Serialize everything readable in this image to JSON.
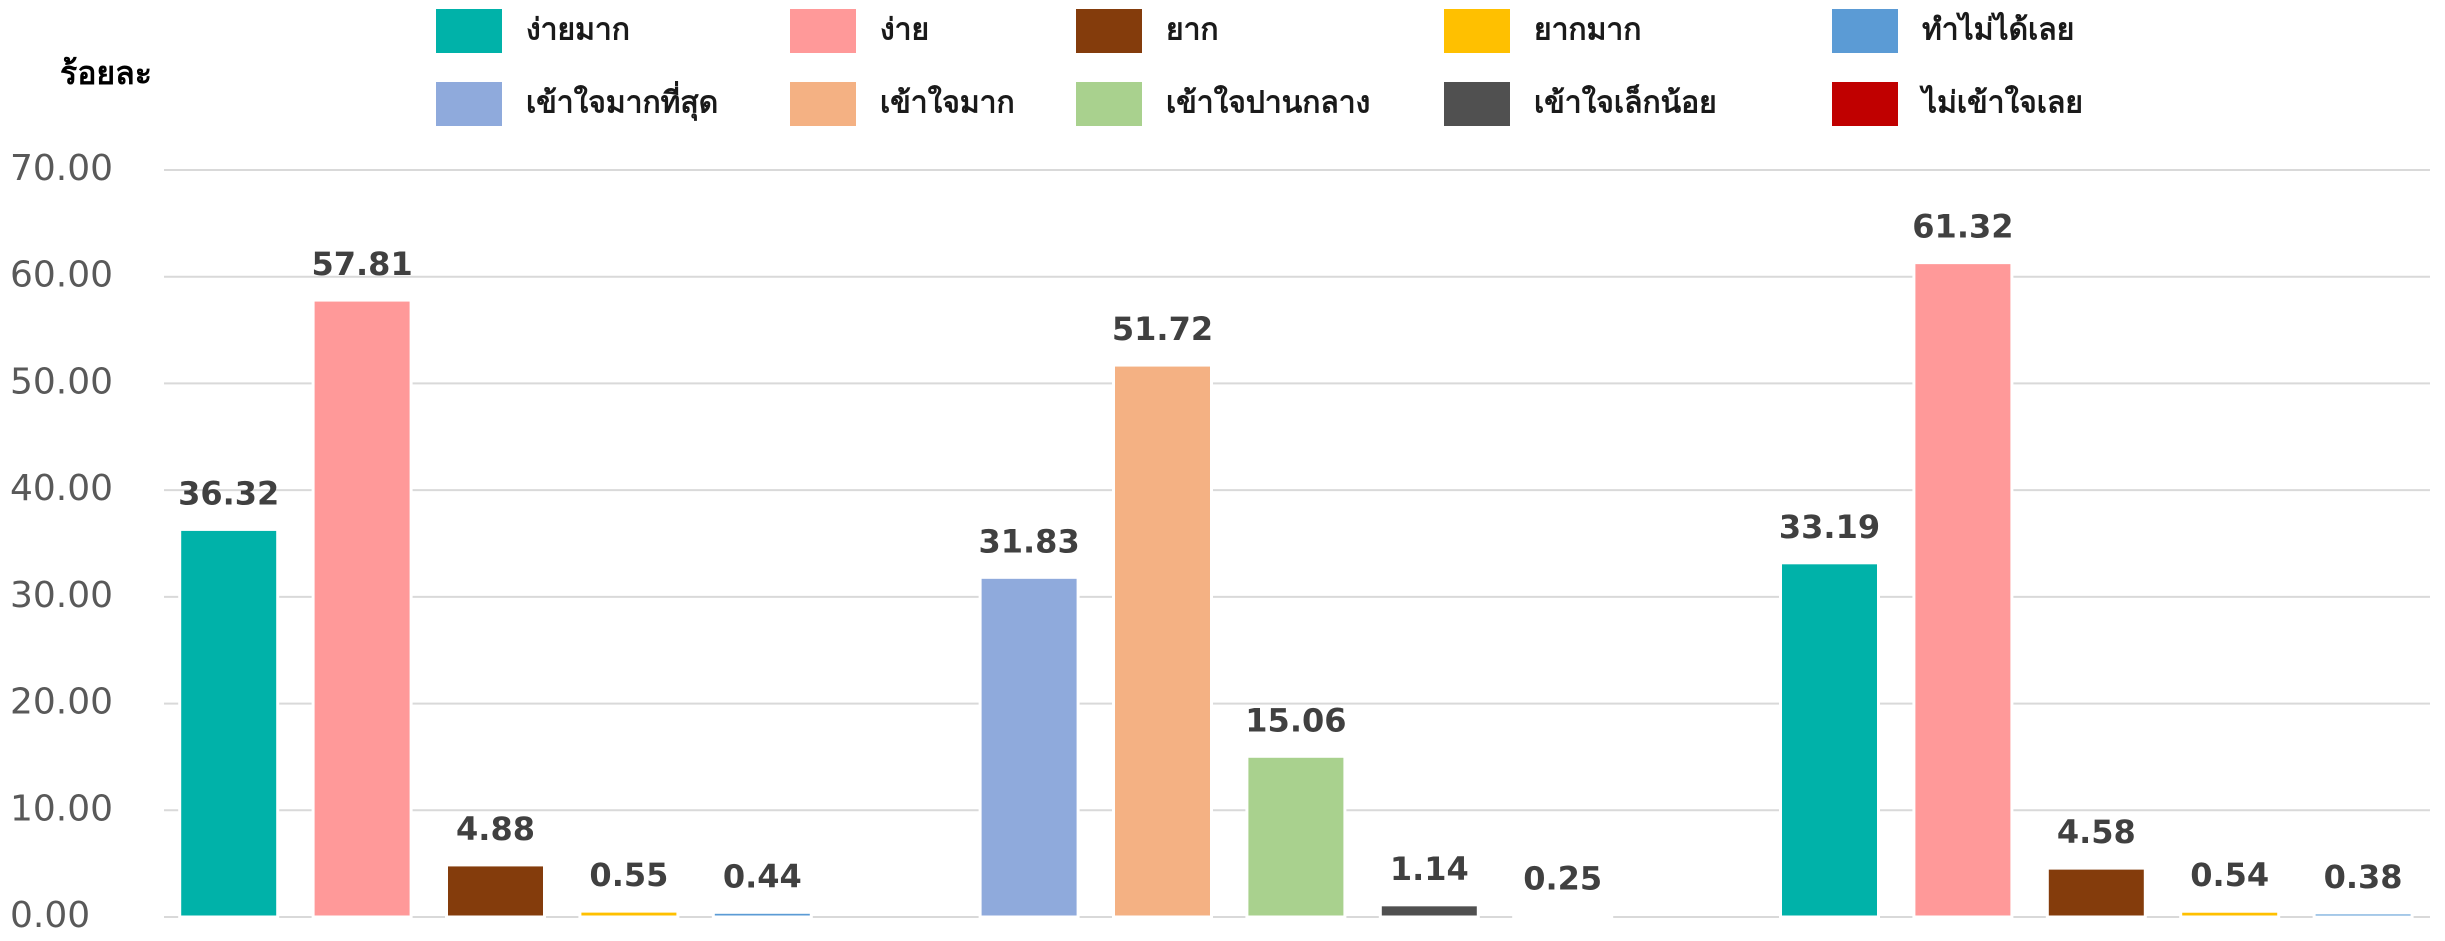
{
  "chart_data": {
    "type": "bar",
    "y_label": "ร้อยละ",
    "categories": [
      null,
      null,
      null
    ],
    "series": [
      {
        "name": "ง่ายมาก",
        "color": "#00b2a9",
        "values": [
          36.32,
          null,
          33.19
        ]
      },
      {
        "name": "ง่าย",
        "color": "#ff9999",
        "values": [
          57.81,
          null,
          61.32
        ]
      },
      {
        "name": "ยาก",
        "color": "#843c0c",
        "values": [
          4.88,
          null,
          4.58
        ]
      },
      {
        "name": "ยากมาก",
        "color": "#ffc000",
        "values": [
          0.55,
          null,
          0.54
        ]
      },
      {
        "name": "ทำไม่ได้เลย",
        "color": "#5b9bd5",
        "values": [
          0.44,
          null,
          0.38
        ]
      },
      {
        "name": "เข้าใจมากที่สุด",
        "color": "#8faadc",
        "values": [
          null,
          31.83,
          null
        ]
      },
      {
        "name": "เข้าใจมาก",
        "color": "#f4b183",
        "values": [
          null,
          51.72,
          null
        ]
      },
      {
        "name": "เข้าใจปานกลาง",
        "color": "#a9d18e",
        "values": [
          null,
          15.06,
          null
        ]
      },
      {
        "name": "เข้าใจเล็กน้อย",
        "color": "#505050",
        "values": [
          null,
          1.14,
          null
        ]
      },
      {
        "name": "ไม่เข้าใจเลย",
        "color": "#c00000",
        "values": [
          null,
          0.25,
          null
        ]
      }
    ],
    "ylim": [
      0,
      70
    ],
    "yticks": [
      {
        "value": 0,
        "label": "0.00"
      },
      {
        "value": 10,
        "label": "10.00"
      },
      {
        "value": 20,
        "label": "20.00"
      },
      {
        "value": 30,
        "label": "30.00"
      },
      {
        "value": 40,
        "label": "40.00"
      },
      {
        "value": 50,
        "label": "50.00"
      },
      {
        "value": 60,
        "label": "60.00"
      },
      {
        "value": 70,
        "label": "70.00"
      }
    ],
    "grid": true
  }
}
